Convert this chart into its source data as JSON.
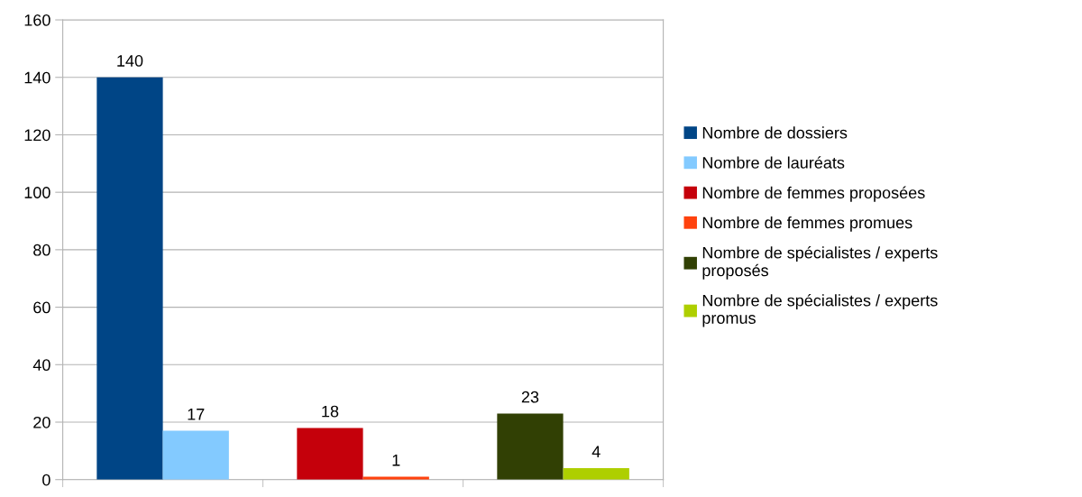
{
  "chart_data": {
    "type": "bar",
    "categories": [
      null,
      null,
      null
    ],
    "series": [
      {
        "name": "Nombre de dossiers",
        "color": "#004586",
        "values": [
          140,
          null,
          null
        ]
      },
      {
        "name": "Nombre de lauréats",
        "color": "#83caff",
        "values": [
          17,
          null,
          null
        ]
      },
      {
        "name": "Nombre de femmes proposées",
        "color": "#c5000b",
        "values": [
          null,
          18,
          null
        ]
      },
      {
        "name": "Nombre de femmes promues",
        "color": "#ff420e",
        "values": [
          null,
          1,
          null
        ]
      },
      {
        "name": "Nombre de spécialistes / experts\nproposés",
        "color": "#314004",
        "values": [
          null,
          null,
          23
        ]
      },
      {
        "name": "Nombre de spécialistes / experts\npromus",
        "color": "#aecf00",
        "values": [
          null,
          null,
          4
        ]
      }
    ],
    "ylim": [
      0,
      160
    ],
    "yticks": [
      0,
      20,
      40,
      60,
      80,
      100,
      120,
      140,
      160
    ],
    "grid": "y",
    "legend": "right",
    "data_labels": true
  }
}
